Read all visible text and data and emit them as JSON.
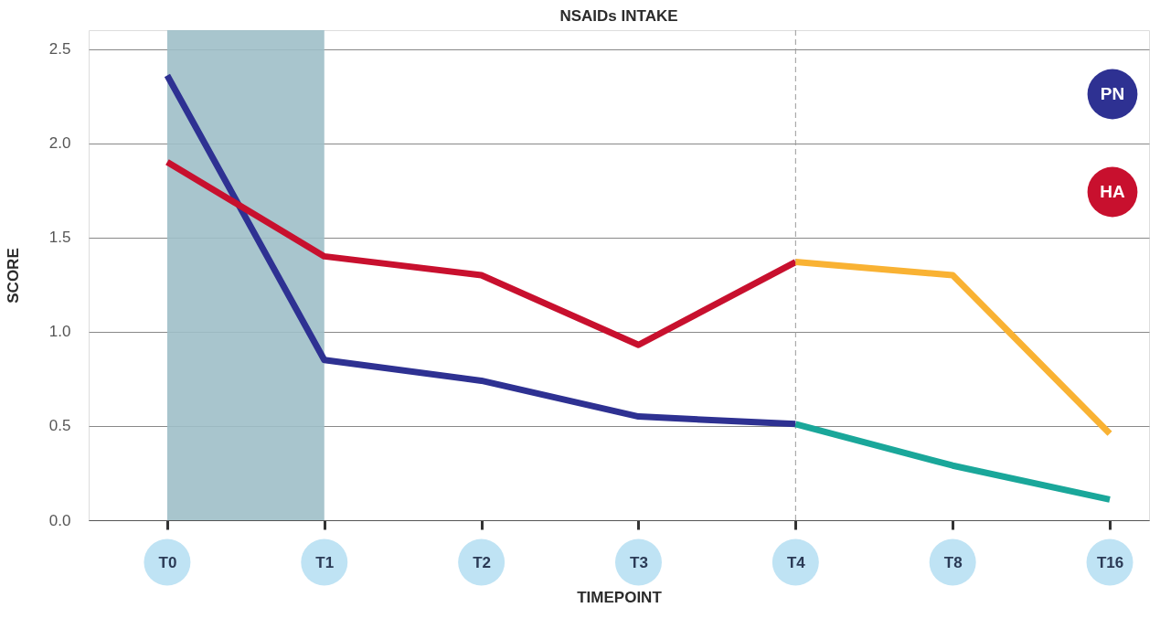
{
  "chart_data": {
    "type": "line",
    "title": "NSAIDs INTAKE",
    "xlabel": "TIMEPOINT",
    "ylabel": "SCORE",
    "categories": [
      "T0",
      "T1",
      "T2",
      "T3",
      "T4",
      "T8",
      "T16"
    ],
    "ylim": [
      0,
      2.6
    ],
    "yticks": [
      {
        "value": 0,
        "label": "0.0"
      },
      {
        "value": 0.5,
        "label": "0.5"
      },
      {
        "value": 1,
        "label": "1.0"
      },
      {
        "value": 1.5,
        "label": "1.5"
      },
      {
        "value": 2,
        "label": "2.0"
      },
      {
        "value": 2.5,
        "label": "2.5"
      }
    ],
    "series": [
      {
        "name": "PN",
        "color": "#2e3192",
        "values": [
          2.36,
          0.85,
          0.74,
          0.55,
          0.51,
          null,
          null
        ]
      },
      {
        "name": "HA",
        "color": "#c8102e",
        "values": [
          1.9,
          1.4,
          1.3,
          0.93,
          1.37,
          null,
          null
        ]
      },
      {
        "color": "#1aa79a",
        "values": [
          null,
          null,
          null,
          null,
          0.51,
          0.29,
          0.11
        ]
      },
      {
        "color": "#f9b233",
        "values": [
          null,
          null,
          null,
          null,
          1.37,
          1.3,
          0.46
        ]
      }
    ],
    "bands": [
      {
        "axis": "x",
        "from": "T0",
        "to": "T1",
        "color": "#9fbfc8"
      }
    ],
    "ref_lines": [
      {
        "axis": "x",
        "value": "T4",
        "line_style": "dashed",
        "color": "#999999"
      }
    ],
    "grid": "y",
    "legend": "top right",
    "marker": "none",
    "line_style": "solid"
  }
}
